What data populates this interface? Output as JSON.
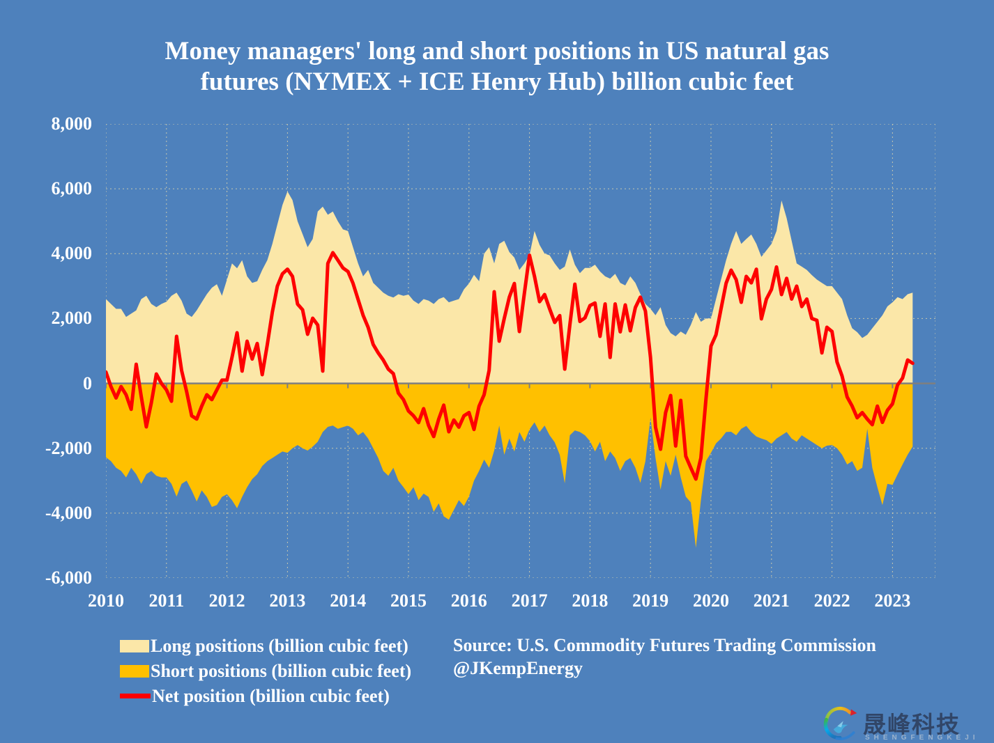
{
  "title": {
    "line1": "Money managers' long and short positions in US natural gas",
    "line2": "futures (NYMEX + ICE Henry Hub) billion cubic feet"
  },
  "colors": {
    "background": "#4e81bc",
    "long_area": "#fbe7a8",
    "short_area": "#ffc000",
    "net_line": "#fe0000",
    "gridline": "#ddd5ac",
    "zero_axis": "#7f7f7f",
    "text": "#ffffff"
  },
  "y_axis": {
    "ticks": [
      "8,000",
      "6,000",
      "4,000",
      "2,000",
      "0",
      "-2,000",
      "-4,000",
      "-6,000"
    ],
    "max": 8000,
    "min": -6000,
    "step": 2000
  },
  "x_axis": {
    "years": [
      "2010",
      "2011",
      "2012",
      "2013",
      "2014",
      "2015",
      "2016",
      "2017",
      "2018",
      "2019",
      "2020",
      "2021",
      "2022",
      "2023"
    ]
  },
  "legend": [
    {
      "label": "Long positions (billion cubic feet)",
      "swatch": "#fbe7a8",
      "kind": "rect"
    },
    {
      "label": "Short positions (billion cubic feet)",
      "swatch": "#ffc000",
      "kind": "rect"
    },
    {
      "label": "Net position (billion cubic feet)",
      "swatch": "#fe0000",
      "kind": "line"
    }
  ],
  "source": {
    "line1": "Source: U.S. Commodity Futures Trading Commission",
    "line2": "@JKempEnergy"
  },
  "watermark": {
    "cn": "晟峰科技",
    "en": "SHENGFENGKEJI"
  },
  "chart_data": {
    "type": "area",
    "title": "Money managers' long and short positions in US natural gas futures (NYMEX + ICE Henry Hub) billion cubic feet",
    "xlabel": "Year",
    "ylabel": "billion cubic feet",
    "x_domain": [
      2010,
      2023.71
    ],
    "x_start": 2010,
    "x_step_years": 0.0833333,
    "ylim": [
      -6000,
      8000
    ],
    "grid": true,
    "legend_position": "bottom-left",
    "series": [
      {
        "name": "Long positions (billion cubic feet)",
        "type": "area",
        "color": "#fbe7a8",
        "values": [
          2600,
          2450,
          2300,
          2300,
          2050,
          2150,
          2250,
          2600,
          2700,
          2450,
          2350,
          2450,
          2520,
          2700,
          2800,
          2550,
          2150,
          2050,
          2250,
          2500,
          2750,
          2950,
          3060,
          2700,
          3200,
          3700,
          3550,
          3800,
          3300,
          3100,
          3150,
          3500,
          3800,
          4300,
          4900,
          5500,
          5920,
          5650,
          5000,
          4600,
          4200,
          4450,
          5300,
          5450,
          5200,
          5300,
          5000,
          4750,
          4700,
          4200,
          3700,
          3300,
          3500,
          3100,
          2950,
          2800,
          2700,
          2650,
          2750,
          2700,
          2740,
          2550,
          2450,
          2600,
          2550,
          2450,
          2600,
          2660,
          2500,
          2550,
          2600,
          2900,
          3080,
          3350,
          3150,
          4000,
          4200,
          3700,
          4300,
          4400,
          4050,
          3880,
          3500,
          3700,
          3950,
          4700,
          4270,
          4000,
          3950,
          3700,
          3500,
          3600,
          4130,
          3660,
          3400,
          3560,
          3560,
          3660,
          3450,
          3300,
          3230,
          3380,
          3100,
          3020,
          3300,
          3100,
          2750,
          2450,
          2300,
          2100,
          2350,
          1800,
          1550,
          1450,
          1600,
          1500,
          1800,
          2200,
          1900,
          2000,
          2000,
          2600,
          3200,
          3800,
          4300,
          4700,
          4300,
          4450,
          4590,
          4300,
          3900,
          4100,
          4300,
          4700,
          5640,
          5100,
          4400,
          3700,
          3600,
          3500,
          3340,
          3200,
          3100,
          3000,
          3000,
          2800,
          2600,
          2100,
          1700,
          1580,
          1400,
          1500,
          1700,
          1900,
          2100,
          2375,
          2500,
          2660,
          2600,
          2750,
          2800
        ]
      },
      {
        "name": "Short positions (billion cubic feet)",
        "type": "area",
        "color": "#ffc000",
        "values": [
          -2280,
          -2400,
          -2600,
          -2700,
          -2900,
          -2600,
          -2800,
          -3100,
          -2800,
          -2700,
          -2850,
          -2900,
          -2900,
          -3100,
          -3490,
          -3100,
          -3000,
          -3300,
          -3640,
          -3300,
          -3500,
          -3810,
          -3750,
          -3500,
          -3420,
          -3600,
          -3850,
          -3500,
          -3200,
          -2950,
          -2800,
          -2550,
          -2400,
          -2300,
          -2200,
          -2100,
          -2140,
          -2000,
          -1900,
          -2000,
          -2070,
          -1950,
          -1800,
          -1500,
          -1340,
          -1300,
          -1400,
          -1350,
          -1300,
          -1400,
          -1600,
          -1500,
          -1700,
          -2000,
          -2300,
          -2700,
          -2850,
          -2600,
          -3000,
          -3200,
          -3420,
          -3200,
          -3600,
          -3400,
          -3500,
          -3960,
          -3700,
          -4100,
          -4200,
          -3900,
          -3600,
          -3780,
          -3490,
          -3000,
          -2700,
          -2350,
          -2600,
          -2070,
          -1300,
          -2200,
          -1700,
          -2100,
          -1500,
          -1800,
          -1420,
          -1200,
          -1500,
          -1300,
          -1600,
          -1815,
          -2200,
          -3080,
          -1600,
          -1450,
          -1500,
          -1600,
          -1780,
          -2100,
          -1800,
          -2400,
          -2100,
          -2300,
          -2700,
          -2400,
          -2300,
          -2600,
          -3070,
          -2400,
          -1060,
          -2300,
          -3280,
          -2400,
          -2850,
          -2200,
          -2900,
          -3490,
          -3670,
          -5070,
          -3600,
          -2400,
          -2140,
          -1850,
          -1700,
          -1500,
          -1490,
          -1600,
          -1400,
          -1310,
          -1500,
          -1640,
          -1700,
          -1750,
          -1865,
          -1700,
          -1600,
          -1500,
          -1700,
          -1800,
          -1600,
          -1700,
          -1800,
          -1900,
          -2000,
          -1920,
          -1900,
          -2000,
          -2200,
          -2500,
          -2400,
          -2700,
          -2600,
          -1400,
          -2600,
          -3200,
          -3750,
          -3100,
          -3130,
          -2810,
          -2500,
          -2200,
          -1950
        ]
      },
      {
        "name": "Net position (billion cubic feet)",
        "type": "line",
        "color": "#fe0000",
        "values": [
          350,
          -100,
          -450,
          -100,
          -350,
          -800,
          590,
          -400,
          -1340,
          -600,
          290,
          0,
          -200,
          -550,
          1450,
          400,
          -250,
          -1000,
          -1100,
          -700,
          -350,
          -500,
          -200,
          100,
          100,
          800,
          1560,
          380,
          1300,
          750,
          1230,
          270,
          1200,
          2200,
          3000,
          3380,
          3520,
          3300,
          2445,
          2270,
          1515,
          2010,
          1800,
          380,
          3700,
          4030,
          3800,
          3560,
          3450,
          3090,
          2590,
          2100,
          1730,
          1200,
          940,
          720,
          440,
          300,
          -300,
          -500,
          -850,
          -1000,
          -1210,
          -780,
          -1300,
          -1640,
          -1100,
          -670,
          -1490,
          -1130,
          -1350,
          -1000,
          -900,
          -1420,
          -700,
          -350,
          400,
          2825,
          1300,
          2000,
          2660,
          3080,
          1600,
          2800,
          3950,
          3300,
          2520,
          2740,
          2300,
          1880,
          2090,
          440,
          1800,
          3060,
          1910,
          2020,
          2400,
          2480,
          1450,
          2450,
          800,
          2450,
          1590,
          2420,
          1620,
          2340,
          2660,
          2230,
          800,
          -1350,
          -2030,
          -900,
          -375,
          -1930,
          -525,
          -2245,
          -2600,
          -2950,
          -2300,
          -500,
          1150,
          1500,
          2300,
          3090,
          3490,
          3200,
          2500,
          3300,
          3100,
          3520,
          1990,
          2600,
          2900,
          3590,
          2740,
          3240,
          2600,
          3000,
          2370,
          2600,
          2000,
          1945,
          940,
          1730,
          1600,
          660,
          230,
          -420,
          -700,
          -1060,
          -900,
          -1100,
          -1275,
          -700,
          -1200,
          -830,
          -630,
          -50,
          165,
          720,
          620
        ]
      }
    ]
  }
}
